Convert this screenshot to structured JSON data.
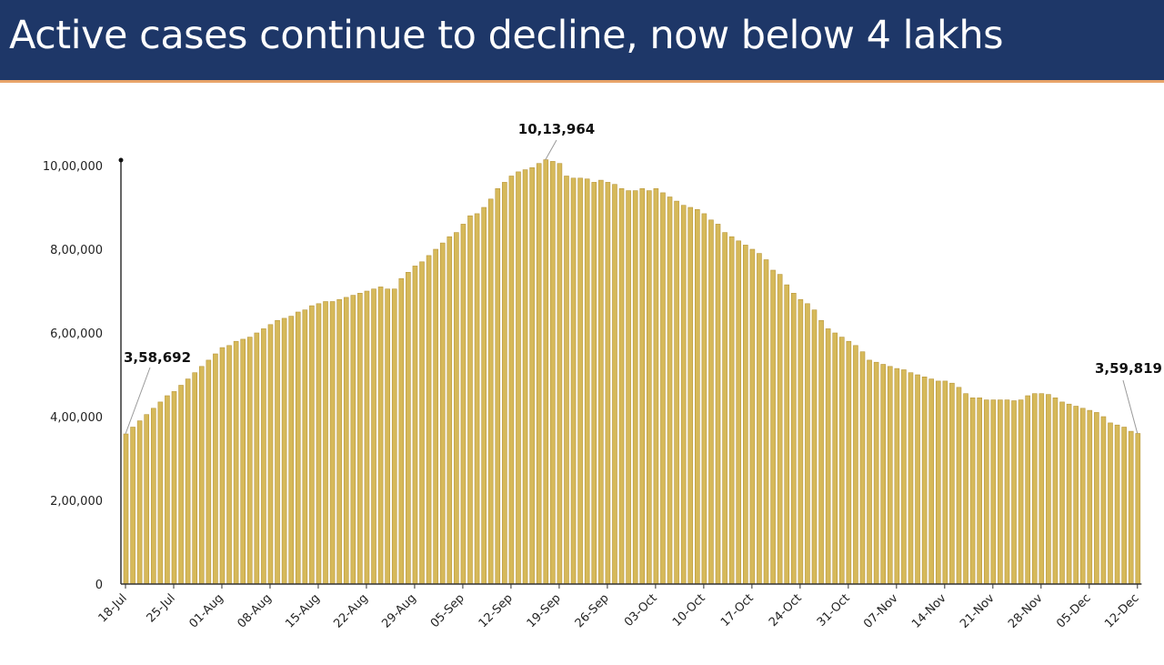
{
  "header": {
    "title": "Active cases continue to decline, now below 4 lakhs"
  },
  "chart_data": {
    "type": "bar",
    "title": "Active cases continue to decline, now below 4 lakhs",
    "xlabel": "",
    "ylabel": "",
    "ylim": [
      0,
      1000000
    ],
    "grid": false,
    "bar_color": "#d6b95a",
    "header_color": "#1e3768",
    "yticks": [
      {
        "value": 0,
        "label": "0"
      },
      {
        "value": 200000,
        "label": "2,00,000"
      },
      {
        "value": 400000,
        "label": "4,00,000"
      },
      {
        "value": 600000,
        "label": "6,00,000"
      },
      {
        "value": 800000,
        "label": "8,00,000"
      },
      {
        "value": 1000000,
        "label": "10,00,000"
      }
    ],
    "xticks": [
      "18-Jul",
      "25-Jul",
      "01-Aug",
      "08-Aug",
      "15-Aug",
      "22-Aug",
      "29-Aug",
      "05-Sep",
      "12-Sep",
      "19-Sep",
      "26-Sep",
      "03-Oct",
      "10-Oct",
      "17-Oct",
      "24-Oct",
      "31-Oct",
      "07-Nov",
      "14-Nov",
      "21-Nov",
      "28-Nov",
      "05-Dec",
      "12-Dec"
    ],
    "annotations": [
      {
        "label": "3,58,692",
        "index": 0
      },
      {
        "label": "10,13,964",
        "index": 61
      },
      {
        "label": "3,59,819",
        "index": 147
      }
    ],
    "values": [
      358692,
      375000,
      390000,
      405000,
      420000,
      435000,
      450000,
      460000,
      475000,
      490000,
      505000,
      520000,
      535000,
      550000,
      565000,
      570000,
      580000,
      585000,
      590000,
      600000,
      610000,
      620000,
      630000,
      635000,
      640000,
      650000,
      655000,
      665000,
      670000,
      675000,
      675000,
      680000,
      685000,
      690000,
      695000,
      700000,
      705000,
      710000,
      705000,
      705000,
      730000,
      745000,
      760000,
      770000,
      785000,
      800000,
      815000,
      830000,
      840000,
      860000,
      880000,
      885000,
      900000,
      920000,
      945000,
      960000,
      975000,
      985000,
      990000,
      995000,
      1005000,
      1013964,
      1010000,
      1005000,
      975000,
      970000,
      970000,
      968000,
      960000,
      965000,
      960000,
      955000,
      945000,
      940000,
      940000,
      945000,
      940000,
      945000,
      935000,
      925000,
      915000,
      905000,
      900000,
      895000,
      885000,
      870000,
      860000,
      840000,
      830000,
      820000,
      810000,
      800000,
      790000,
      775000,
      750000,
      740000,
      715000,
      695000,
      680000,
      670000,
      655000,
      630000,
      610000,
      600000,
      590000,
      580000,
      570000,
      555000,
      535000,
      530000,
      525000,
      520000,
      515000,
      512000,
      505000,
      500000,
      495000,
      490000,
      485000,
      485000,
      480000,
      470000,
      455000,
      445000,
      445000,
      440000,
      440000,
      440000,
      440000,
      438000,
      440000,
      450000,
      455000,
      455000,
      453000,
      445000,
      435000,
      430000,
      425000,
      420000,
      415000,
      410000,
      400000,
      385000,
      380000,
      375000,
      365000,
      359819
    ]
  }
}
